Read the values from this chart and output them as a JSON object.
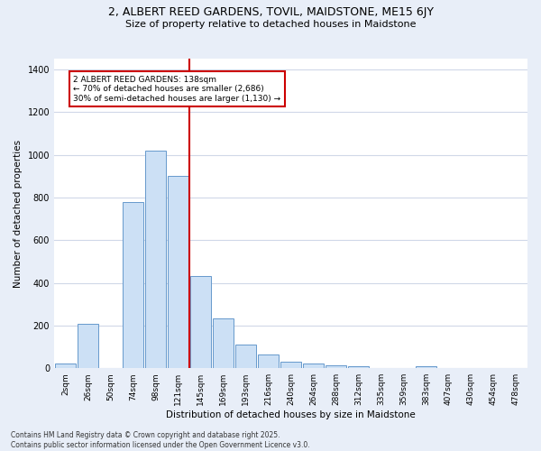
{
  "title_line1": "2, ALBERT REED GARDENS, TOVIL, MAIDSTONE, ME15 6JY",
  "title_line2": "Size of property relative to detached houses in Maidstone",
  "xlabel": "Distribution of detached houses by size in Maidstone",
  "ylabel": "Number of detached properties",
  "bin_labels": [
    "2sqm",
    "26sqm",
    "50sqm",
    "74sqm",
    "98sqm",
    "121sqm",
    "145sqm",
    "169sqm",
    "193sqm",
    "216sqm",
    "240sqm",
    "264sqm",
    "288sqm",
    "312sqm",
    "335sqm",
    "359sqm",
    "383sqm",
    "407sqm",
    "430sqm",
    "454sqm",
    "478sqm"
  ],
  "bar_heights": [
    20,
    210,
    0,
    780,
    1020,
    900,
    430,
    235,
    110,
    65,
    30,
    20,
    15,
    10,
    0,
    0,
    10,
    0,
    0,
    0,
    0
  ],
  "bar_color": "#cce0f5",
  "bar_edge_color": "#6699cc",
  "vline_x_index": 5.5,
  "vline_color": "#cc0000",
  "annotation_text": "2 ALBERT REED GARDENS: 138sqm\n← 70% of detached houses are smaller (2,686)\n30% of semi-detached houses are larger (1,130) →",
  "annotation_box_color": "#ffffff",
  "annotation_box_edge": "#cc0000",
  "ylim": [
    0,
    1450
  ],
  "yticks": [
    0,
    200,
    400,
    600,
    800,
    1000,
    1200,
    1400
  ],
  "footer_line1": "Contains HM Land Registry data © Crown copyright and database right 2025.",
  "footer_line2": "Contains public sector information licensed under the Open Government Licence v3.0.",
  "bg_color": "#e8eef8",
  "plot_bg_color": "#ffffff",
  "grid_color": "#d0d8e8"
}
